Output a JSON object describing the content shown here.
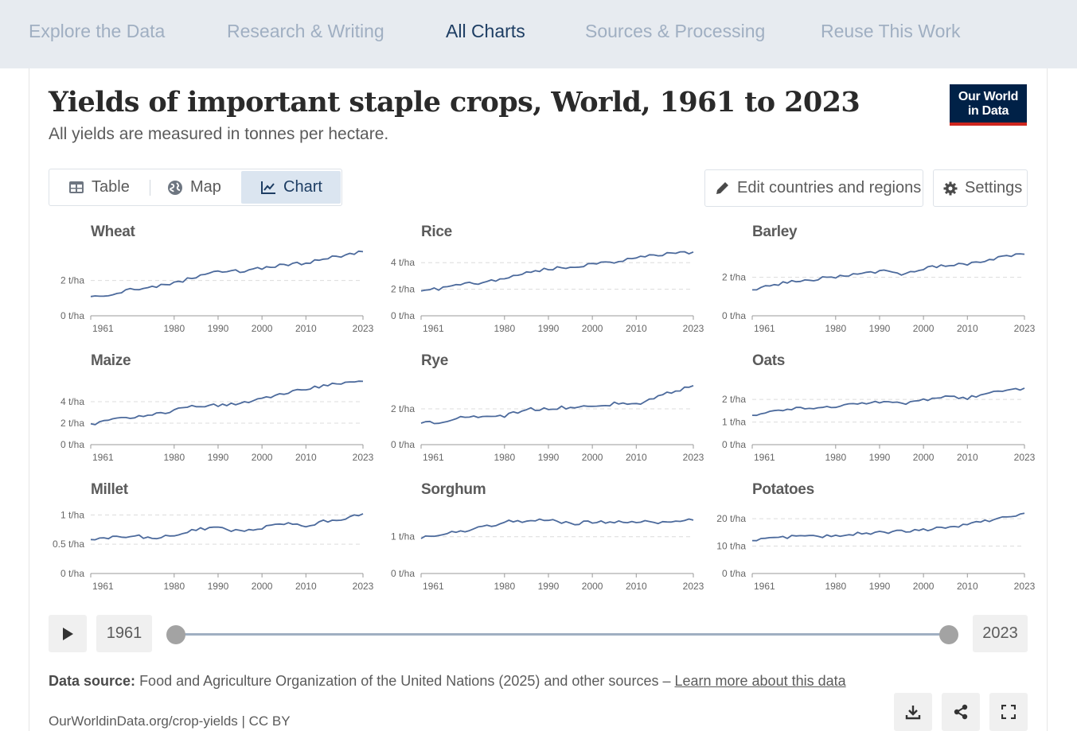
{
  "nav": {
    "items": [
      "Explore the Data",
      "Research & Writing",
      "All Charts",
      "Sources & Processing",
      "Reuse This Work"
    ],
    "active_index": 2
  },
  "header": {
    "title": "Yields of important staple crops, World, 1961 to 2023",
    "subtitle": "All yields are measured in tonnes per hectare.",
    "logo_line1": "Our World",
    "logo_line2": "in Data"
  },
  "tabs": {
    "table": "Table",
    "map": "Map",
    "chart": "Chart",
    "active": "chart"
  },
  "controls": {
    "edit": "Edit countries and regions",
    "settings": "Settings"
  },
  "timeline": {
    "start": "1961",
    "end": "2023",
    "start_fraction": 0,
    "end_fraction": 1
  },
  "footer": {
    "source_label": "Data source:",
    "source_text": "Food and Agriculture Organization of the United Nations (2025) and other sources –",
    "learn_more": "Learn more about this data",
    "url": "OurWorldinData.org/crop-yields | CC BY"
  },
  "colors": {
    "line": "#4c6a9c",
    "brand": "#002147",
    "accent": "#ce261e"
  },
  "icons": [
    "table-icon",
    "globe-icon",
    "chart-line-icon",
    "pencil-icon",
    "gear-icon",
    "play-icon",
    "download-icon",
    "share-icon",
    "fullscreen-icon"
  ],
  "chart_data": {
    "type": "line",
    "layout": "small-multiples",
    "unit": "t/ha",
    "x_ticks": [
      1961,
      1980,
      1990,
      2000,
      2010,
      2023
    ],
    "x_range": [
      1961,
      2023
    ],
    "grid": "dashed horizontal",
    "panels": [
      {
        "title": "Wheat",
        "yticks": [
          0,
          2
        ],
        "ytick_labels": [
          "0 t/ha",
          "2 t/ha"
        ],
        "ymax": 3.65,
        "points": [
          [
            1961,
            1.09
          ],
          [
            1965,
            1.21
          ],
          [
            1970,
            1.5
          ],
          [
            1975,
            1.6
          ],
          [
            1980,
            1.86
          ],
          [
            1985,
            2.2
          ],
          [
            1990,
            2.56
          ],
          [
            1995,
            2.52
          ],
          [
            2000,
            2.72
          ],
          [
            2005,
            2.87
          ],
          [
            2010,
            3.0
          ],
          [
            2015,
            3.27
          ],
          [
            2020,
            3.5
          ],
          [
            2023,
            3.63
          ]
        ]
      },
      {
        "title": "Rice",
        "yticks": [
          0,
          2,
          4
        ],
        "ytick_labels": [
          "0 t/ha",
          "2 t/ha",
          "4 t/ha"
        ],
        "ymax": 4.85,
        "points": [
          [
            1961,
            1.87
          ],
          [
            1965,
            2.03
          ],
          [
            1970,
            2.37
          ],
          [
            1975,
            2.52
          ],
          [
            1980,
            2.77
          ],
          [
            1985,
            3.25
          ],
          [
            1990,
            3.53
          ],
          [
            1995,
            3.66
          ],
          [
            2000,
            3.9
          ],
          [
            2005,
            4.08
          ],
          [
            2010,
            4.38
          ],
          [
            2015,
            4.6
          ],
          [
            2020,
            4.7
          ],
          [
            2023,
            4.8
          ]
        ]
      },
      {
        "title": "Barley",
        "yticks": [
          0,
          2
        ],
        "ytick_labels": [
          "0 t/ha",
          "2 t/ha"
        ],
        "ymax": 3.35,
        "points": [
          [
            1961,
            1.35
          ],
          [
            1965,
            1.55
          ],
          [
            1970,
            1.82
          ],
          [
            1975,
            1.9
          ],
          [
            1980,
            2.02
          ],
          [
            1985,
            2.16
          ],
          [
            1990,
            2.33
          ],
          [
            1995,
            2.2
          ],
          [
            2000,
            2.48
          ],
          [
            2005,
            2.62
          ],
          [
            2010,
            2.67
          ],
          [
            2015,
            2.95
          ],
          [
            2020,
            3.1
          ],
          [
            2023,
            3.2
          ]
        ]
      },
      {
        "title": "Maize",
        "yticks": [
          0,
          2,
          4
        ],
        "ytick_labels": [
          "0 t/ha",
          "2 t/ha",
          "4 t/ha"
        ],
        "ymax": 6.0,
        "points": [
          [
            1961,
            1.94
          ],
          [
            1965,
            2.2
          ],
          [
            1970,
            2.55
          ],
          [
            1975,
            2.75
          ],
          [
            1980,
            3.2
          ],
          [
            1985,
            3.6
          ],
          [
            1990,
            3.65
          ],
          [
            1995,
            3.9
          ],
          [
            2000,
            4.3
          ],
          [
            2005,
            4.75
          ],
          [
            2010,
            5.2
          ],
          [
            2015,
            5.57
          ],
          [
            2020,
            5.75
          ],
          [
            2023,
            5.9
          ]
        ]
      },
      {
        "title": "Rye",
        "yticks": [
          0,
          2
        ],
        "ytick_labels": [
          "0 t/ha",
          "2 t/ha"
        ],
        "ymax": 3.6,
        "points": [
          [
            1961,
            1.2
          ],
          [
            1965,
            1.25
          ],
          [
            1970,
            1.5
          ],
          [
            1975,
            1.6
          ],
          [
            1980,
            1.6
          ],
          [
            1985,
            1.98
          ],
          [
            1990,
            2.03
          ],
          [
            1995,
            2.1
          ],
          [
            2000,
            2.1
          ],
          [
            2005,
            2.3
          ],
          [
            2010,
            2.25
          ],
          [
            2015,
            2.75
          ],
          [
            2020,
            3.05
          ],
          [
            2023,
            3.3
          ]
        ]
      },
      {
        "title": "Oats",
        "yticks": [
          0,
          1,
          2
        ],
        "ytick_labels": [
          "0 t/ha",
          "1 t/ha",
          "2 t/ha"
        ],
        "ymax": 2.85,
        "points": [
          [
            1961,
            1.3
          ],
          [
            1965,
            1.45
          ],
          [
            1970,
            1.6
          ],
          [
            1975,
            1.65
          ],
          [
            1980,
            1.7
          ],
          [
            1985,
            1.8
          ],
          [
            1990,
            1.86
          ],
          [
            1995,
            1.8
          ],
          [
            2000,
            2.0
          ],
          [
            2005,
            2.1
          ],
          [
            2010,
            2.05
          ],
          [
            2015,
            2.3
          ],
          [
            2020,
            2.45
          ],
          [
            2023,
            2.5
          ]
        ]
      },
      {
        "title": "Millet",
        "yticks": [
          0,
          0.5,
          1
        ],
        "ytick_labels": [
          "0 t/ha",
          "0.5 t/ha",
          "1 t/ha"
        ],
        "ymax": 1.1,
        "points": [
          [
            1961,
            0.58
          ],
          [
            1965,
            0.6
          ],
          [
            1970,
            0.65
          ],
          [
            1975,
            0.6
          ],
          [
            1980,
            0.65
          ],
          [
            1985,
            0.75
          ],
          [
            1990,
            0.78
          ],
          [
            1995,
            0.72
          ],
          [
            2000,
            0.78
          ],
          [
            2005,
            0.85
          ],
          [
            2010,
            0.82
          ],
          [
            2015,
            0.9
          ],
          [
            2020,
            0.95
          ],
          [
            2023,
            1.02
          ]
        ]
      },
      {
        "title": "Sorghum",
        "yticks": [
          1
        ],
        "ytick_labels": [
          "1 t/ha"
        ],
        "ymax": 1.75,
        "ymin_label": "0 t/ha",
        "points": [
          [
            1961,
            0.95
          ],
          [
            1965,
            1.05
          ],
          [
            1970,
            1.15
          ],
          [
            1975,
            1.25
          ],
          [
            1980,
            1.4
          ],
          [
            1985,
            1.42
          ],
          [
            1990,
            1.45
          ],
          [
            1995,
            1.35
          ],
          [
            2000,
            1.4
          ],
          [
            2005,
            1.38
          ],
          [
            2010,
            1.42
          ],
          [
            2015,
            1.4
          ],
          [
            2020,
            1.43
          ],
          [
            2023,
            1.45
          ]
        ]
      },
      {
        "title": "Potatoes",
        "yticks": [
          0,
          10,
          20
        ],
        "ytick_labels": [
          "0 t/ha",
          "10 t/ha",
          "20 t/ha"
        ],
        "ymax": 23.5,
        "points": [
          [
            1961,
            12
          ],
          [
            1965,
            12.5
          ],
          [
            1970,
            13.5
          ],
          [
            1975,
            13.8
          ],
          [
            1980,
            13.5
          ],
          [
            1985,
            14.5
          ],
          [
            1990,
            15
          ],
          [
            1995,
            15.5
          ],
          [
            2000,
            16
          ],
          [
            2005,
            16.5
          ],
          [
            2010,
            18
          ],
          [
            2015,
            19.5
          ],
          [
            2020,
            21
          ],
          [
            2023,
            22
          ]
        ]
      }
    ]
  }
}
